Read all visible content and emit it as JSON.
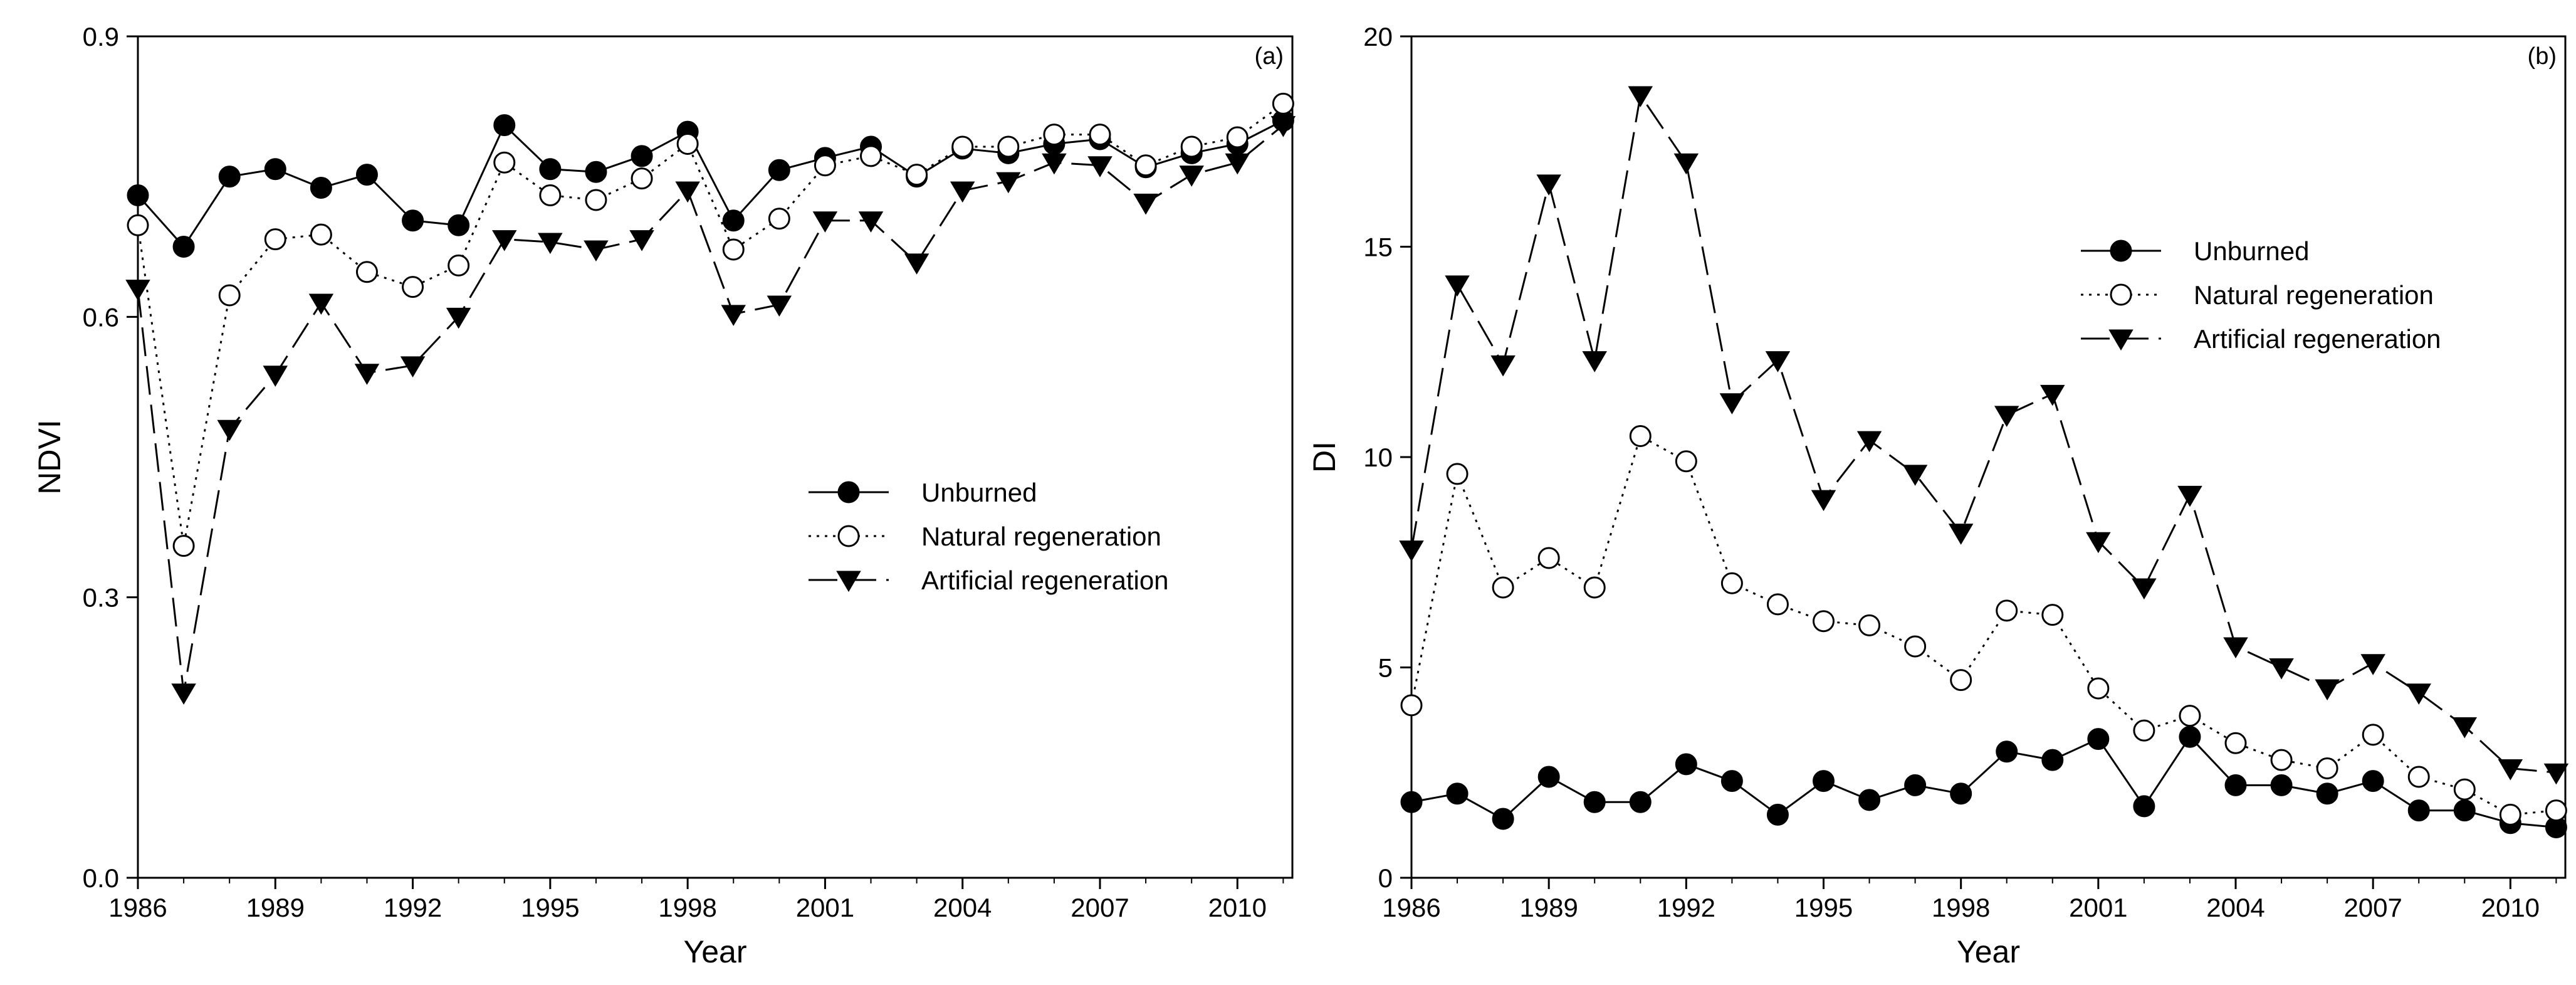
{
  "chart_data": [
    {
      "type": "line",
      "panel_label": "(a)",
      "xlabel": "Year",
      "ylabel": "NDVI",
      "xlim": [
        1986,
        2011.2
      ],
      "ylim": [
        0,
        0.9
      ],
      "xticks": [
        1986,
        1989,
        1992,
        1995,
        1998,
        2001,
        2004,
        2007,
        2010
      ],
      "xtick_labels": [
        "1986",
        "1989",
        "1992",
        "1995",
        "1998",
        "2001",
        "2004",
        "2007",
        "2010"
      ],
      "yticks": [
        0,
        0.3,
        0.6,
        0.9
      ],
      "ytick_labels": [
        "0.0",
        "0.3",
        "0.6",
        "0.9"
      ],
      "legend_position": "center-right",
      "x": [
        1986,
        1987,
        1988,
        1989,
        1990,
        1991,
        1992,
        1993,
        1994,
        1995,
        1996,
        1997,
        1998,
        1999,
        2000,
        2001,
        2002,
        2003,
        2004,
        2005,
        2006,
        2007,
        2008,
        2009,
        2010,
        2011
      ],
      "series": [
        {
          "name": "Unburned",
          "marker": "circle-filled",
          "line": "solid",
          "values": [
            0.73,
            0.675,
            0.75,
            0.758,
            0.738,
            0.752,
            0.703,
            0.698,
            0.805,
            0.758,
            0.755,
            0.772,
            0.798,
            0.703,
            0.757,
            0.77,
            0.782,
            0.75,
            0.78,
            0.775,
            0.785,
            0.79,
            0.76,
            0.775,
            0.785,
            0.81
          ]
        },
        {
          "name": "Natural regeneration",
          "marker": "circle-open",
          "line": "dotted",
          "values": [
            0.698,
            0.355,
            0.623,
            0.683,
            0.688,
            0.648,
            0.632,
            0.655,
            0.765,
            0.73,
            0.725,
            0.748,
            0.785,
            0.672,
            0.705,
            0.762,
            0.772,
            0.752,
            0.782,
            0.782,
            0.795,
            0.795,
            0.762,
            0.782,
            0.792,
            0.828
          ]
        },
        {
          "name": "Artificial regeneration",
          "marker": "triangle-down",
          "line": "dashed",
          "values": [
            0.63,
            0.198,
            0.48,
            0.538,
            0.615,
            0.54,
            0.548,
            0.6,
            0.683,
            0.68,
            0.672,
            0.683,
            0.735,
            0.603,
            0.613,
            0.703,
            0.703,
            0.658,
            0.735,
            0.745,
            0.765,
            0.762,
            0.722,
            0.752,
            0.765,
            0.805
          ]
        }
      ]
    },
    {
      "type": "line",
      "panel_label": "(b)",
      "xlabel": "Year",
      "ylabel": "DI",
      "xlim": [
        1986,
        2011.2
      ],
      "ylim": [
        0,
        20
      ],
      "xticks": [
        1986,
        1989,
        1992,
        1995,
        1998,
        2001,
        2004,
        2007,
        2010
      ],
      "xtick_labels": [
        "1986",
        "1989",
        "1992",
        "1995",
        "1998",
        "2001",
        "2004",
        "2007",
        "2010"
      ],
      "yticks": [
        0,
        5,
        10,
        15,
        20
      ],
      "ytick_labels": [
        "0",
        "5",
        "10",
        "15",
        "20"
      ],
      "legend_position": "top-right",
      "x": [
        1986,
        1987,
        1988,
        1989,
        1990,
        1991,
        1992,
        1993,
        1994,
        1995,
        1996,
        1997,
        1998,
        1999,
        2000,
        2001,
        2002,
        2003,
        2004,
        2005,
        2006,
        2007,
        2008,
        2009,
        2010,
        2011
      ],
      "series": [
        {
          "name": "Unburned",
          "marker": "circle-filled",
          "line": "solid",
          "values": [
            1.8,
            2.0,
            1.4,
            2.4,
            1.8,
            1.8,
            2.7,
            2.3,
            1.5,
            2.3,
            1.85,
            2.2,
            2.0,
            3.0,
            2.8,
            3.3,
            1.7,
            3.35,
            2.2,
            2.2,
            2.0,
            2.3,
            1.6,
            1.6,
            1.3,
            1.2
          ]
        },
        {
          "name": "Natural regeneration",
          "marker": "circle-open",
          "line": "dotted",
          "values": [
            4.1,
            9.6,
            6.9,
            7.6,
            6.9,
            10.5,
            9.9,
            7.0,
            6.5,
            6.1,
            6.0,
            5.5,
            4.7,
            6.35,
            6.25,
            4.5,
            3.5,
            3.85,
            3.2,
            2.8,
            2.6,
            3.4,
            2.4,
            2.1,
            1.5,
            1.6
          ]
        },
        {
          "name": "Artificial regeneration",
          "marker": "triangle-down",
          "line": "dashed",
          "values": [
            7.8,
            14.1,
            12.2,
            16.5,
            12.3,
            18.6,
            17.0,
            11.3,
            12.3,
            9.0,
            10.4,
            9.6,
            8.2,
            11.0,
            11.5,
            8.0,
            6.9,
            9.1,
            5.5,
            5.0,
            4.5,
            5.1,
            4.4,
            3.6,
            2.6,
            2.5
          ]
        }
      ]
    }
  ]
}
